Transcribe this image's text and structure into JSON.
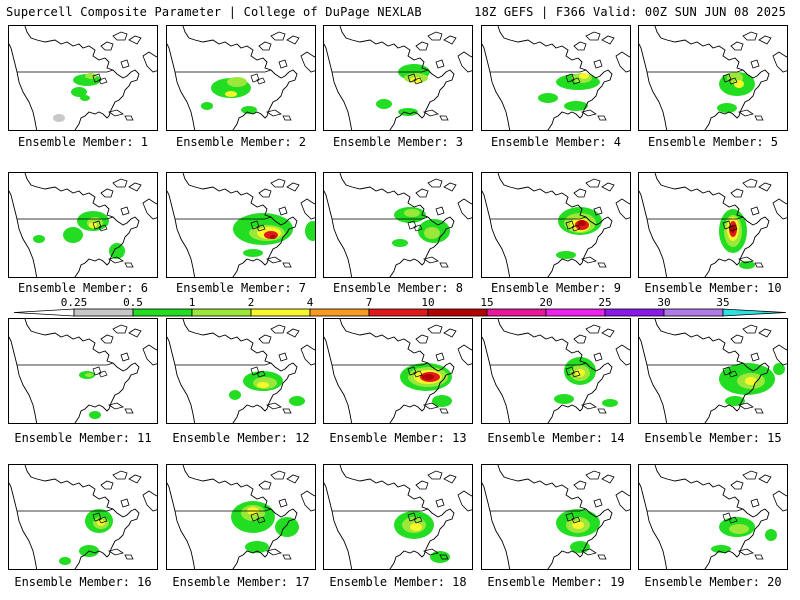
{
  "header": {
    "title": "Supercell Composite Parameter | College of DuPage NEXLAB",
    "run_info": "18Z GEFS | F366 Valid: 00Z SUN JUN 08 2025"
  },
  "colorbar": {
    "levels": [
      "0.25",
      "0.5",
      "1",
      "2",
      "4",
      "7",
      "10",
      "15",
      "20",
      "25",
      "30",
      "35"
    ],
    "colors": [
      "#c8c8c8",
      "#22dd22",
      "#9be83a",
      "#f7f72a",
      "#f79a1f",
      "#e01a1a",
      "#b30000",
      "#e8169a",
      "#ee22ee",
      "#8a1ae8",
      "#b07ae8",
      "#2ee0e0"
    ],
    "under_color": "#ffffff"
  },
  "members": [
    {
      "label": "Ensemble Member: 1"
    },
    {
      "label": "Ensemble Member: 2"
    },
    {
      "label": "Ensemble Member: 3"
    },
    {
      "label": "Ensemble Member: 4"
    },
    {
      "label": "Ensemble Member: 5"
    },
    {
      "label": "Ensemble Member: 6"
    },
    {
      "label": "Ensemble Member: 7"
    },
    {
      "label": "Ensemble Member: 8"
    },
    {
      "label": "Ensemble Member: 9"
    },
    {
      "label": "Ensemble Member: 10"
    },
    {
      "label": "Ensemble Member: 11"
    },
    {
      "label": "Ensemble Member: 12"
    },
    {
      "label": "Ensemble Member: 13"
    },
    {
      "label": "Ensemble Member: 14"
    },
    {
      "label": "Ensemble Member: 15"
    },
    {
      "label": "Ensemble Member: 16"
    },
    {
      "label": "Ensemble Member: 17"
    },
    {
      "label": "Ensemble Member: 18"
    },
    {
      "label": "Ensemble Member: 19"
    },
    {
      "label": "Ensemble Member: 20"
    }
  ]
}
